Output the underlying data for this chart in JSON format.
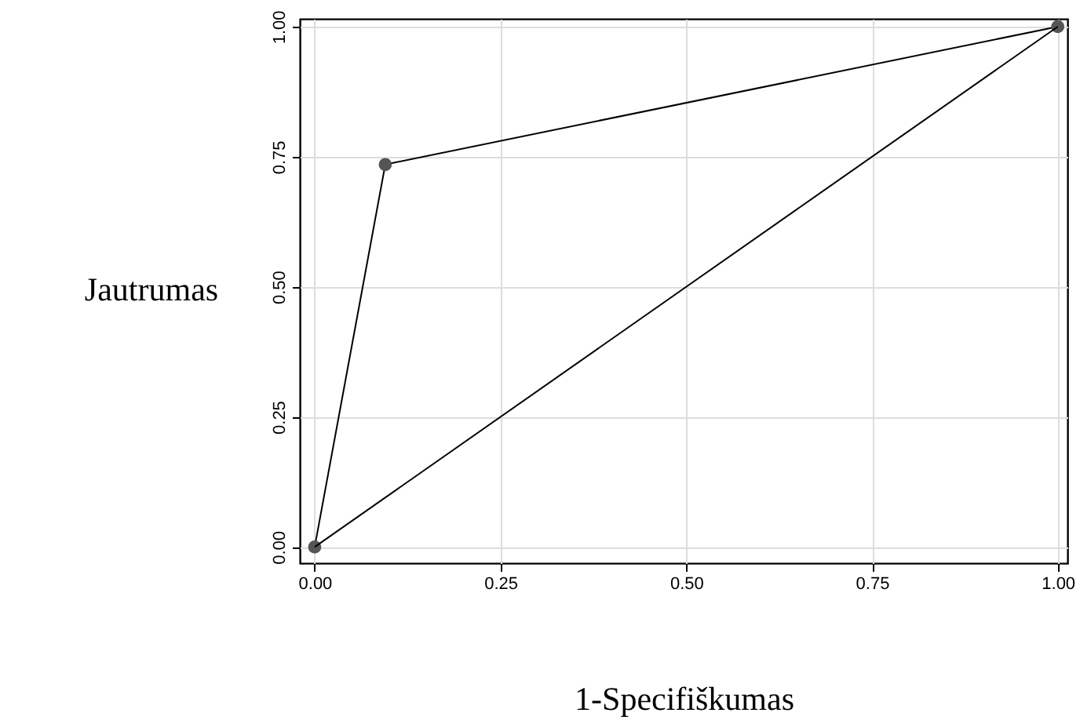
{
  "chart_data": {
    "type": "line",
    "xlabel": "1-Specifiškumas",
    "ylabel": "Jautrumas",
    "xlim": [
      -0.02,
      1.013
    ],
    "ylim": [
      -0.031,
      1.015
    ],
    "xticks": [
      {
        "value": 0,
        "label": "0.00"
      },
      {
        "value": 0.25,
        "label": "0.25"
      },
      {
        "value": 0.5,
        "label": "0.50"
      },
      {
        "value": 0.75,
        "label": "0.75"
      },
      {
        "value": 1,
        "label": "1.00"
      }
    ],
    "yticks": [
      {
        "value": 0,
        "label": "0.00"
      },
      {
        "value": 0.25,
        "label": "0.25"
      },
      {
        "value": 0.5,
        "label": "0.50"
      },
      {
        "value": 0.75,
        "label": "0.75"
      },
      {
        "value": 1,
        "label": "1.00"
      }
    ],
    "grid": true,
    "series": [
      {
        "color": "#000000",
        "marker": "circle",
        "x": [
          0,
          0.095,
          1
        ],
        "values": [
          0,
          0.735,
          1
        ]
      },
      {
        "color": "#000000",
        "marker": "none",
        "x": [
          0,
          1
        ],
        "values": [
          0,
          1
        ]
      }
    ]
  }
}
